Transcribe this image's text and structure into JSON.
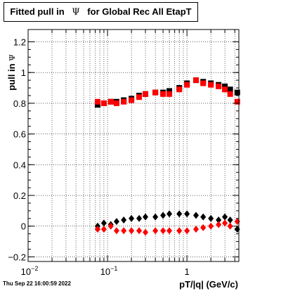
{
  "chart_data": {
    "type": "scatter",
    "title_parts": [
      "Fitted pull in",
      "Ψ",
      "for Global Rec All EtapT"
    ],
    "xlabel": "pT/|q| (GeV/c)",
    "ylabel_parts": [
      "pull in",
      "Ψ"
    ],
    "xscale": "log",
    "xlim": [
      0.01,
      4.5
    ],
    "ylim": [
      -0.23,
      1.28
    ],
    "grid": true,
    "legend": "none",
    "x_tick_labels": [
      {
        "mantissa": "10",
        "exp": "−2",
        "value": 0.01
      },
      {
        "mantissa": "10",
        "exp": "−1",
        "value": 0.1
      },
      {
        "mantissa": "1",
        "exp": "",
        "value": 1
      }
    ],
    "y_ticks": [
      -0.2,
      0,
      0.2,
      0.4,
      0.6,
      0.8,
      1,
      1.2
    ],
    "y_tick_labels": [
      "−0.2",
      "0",
      "0.2",
      "0.4",
      "0.6",
      "0.8",
      "1",
      "1.2"
    ],
    "series": [
      {
        "color": "#000000",
        "marker": "square",
        "group": "upper",
        "x": [
          0.075,
          0.09,
          0.11,
          0.13,
          0.16,
          0.2,
          0.25,
          0.3,
          0.4,
          0.5,
          0.6,
          0.8,
          1.0,
          1.3,
          1.6,
          2.0,
          2.5,
          3.0,
          3.5,
          4.3
        ],
        "y": [
          0.79,
          0.8,
          0.81,
          0.81,
          0.82,
          0.83,
          0.85,
          0.86,
          0.87,
          0.87,
          0.88,
          0.9,
          0.93,
          0.95,
          0.94,
          0.93,
          0.92,
          0.91,
          0.89,
          0.87
        ]
      },
      {
        "color": "#ff0000",
        "marker": "square",
        "group": "upper",
        "x": [
          0.075,
          0.09,
          0.11,
          0.13,
          0.16,
          0.2,
          0.25,
          0.3,
          0.4,
          0.5,
          0.6,
          0.8,
          1.0,
          1.3,
          1.6,
          2.0,
          2.5,
          3.0,
          3.5,
          4.3
        ],
        "y": [
          0.81,
          0.8,
          0.81,
          0.8,
          0.81,
          0.82,
          0.84,
          0.86,
          0.87,
          0.86,
          0.86,
          0.89,
          0.92,
          0.95,
          0.93,
          0.92,
          0.91,
          0.89,
          0.86,
          0.81
        ]
      },
      {
        "color": "#000000",
        "marker": "diamond",
        "group": "lower",
        "x": [
          0.075,
          0.09,
          0.11,
          0.13,
          0.16,
          0.2,
          0.25,
          0.3,
          0.4,
          0.5,
          0.6,
          0.8,
          1.0,
          1.3,
          1.6,
          2.0,
          2.5,
          3.0,
          3.5,
          4.3
        ],
        "y": [
          0.0,
          0.02,
          0.01,
          0.03,
          0.04,
          0.05,
          0.05,
          0.06,
          0.06,
          0.07,
          0.08,
          0.08,
          0.08,
          0.07,
          0.06,
          0.05,
          0.04,
          0.06,
          0.04,
          -0.02
        ]
      },
      {
        "color": "#ff0000",
        "marker": "diamond",
        "group": "lower",
        "x": [
          0.075,
          0.09,
          0.11,
          0.13,
          0.16,
          0.2,
          0.25,
          0.3,
          0.4,
          0.5,
          0.6,
          0.8,
          1.0,
          1.3,
          1.6,
          2.0,
          2.5,
          3.0,
          3.5,
          4.3
        ],
        "y": [
          -0.02,
          -0.02,
          0.0,
          -0.03,
          -0.03,
          -0.03,
          -0.03,
          -0.04,
          -0.03,
          -0.03,
          -0.03,
          -0.03,
          -0.03,
          -0.02,
          -0.01,
          0.0,
          0.01,
          0.02,
          0.0,
          0.03
        ]
      }
    ]
  },
  "footer": {
    "datestamp": "Thu Sep 22 16:00:59 2022"
  }
}
